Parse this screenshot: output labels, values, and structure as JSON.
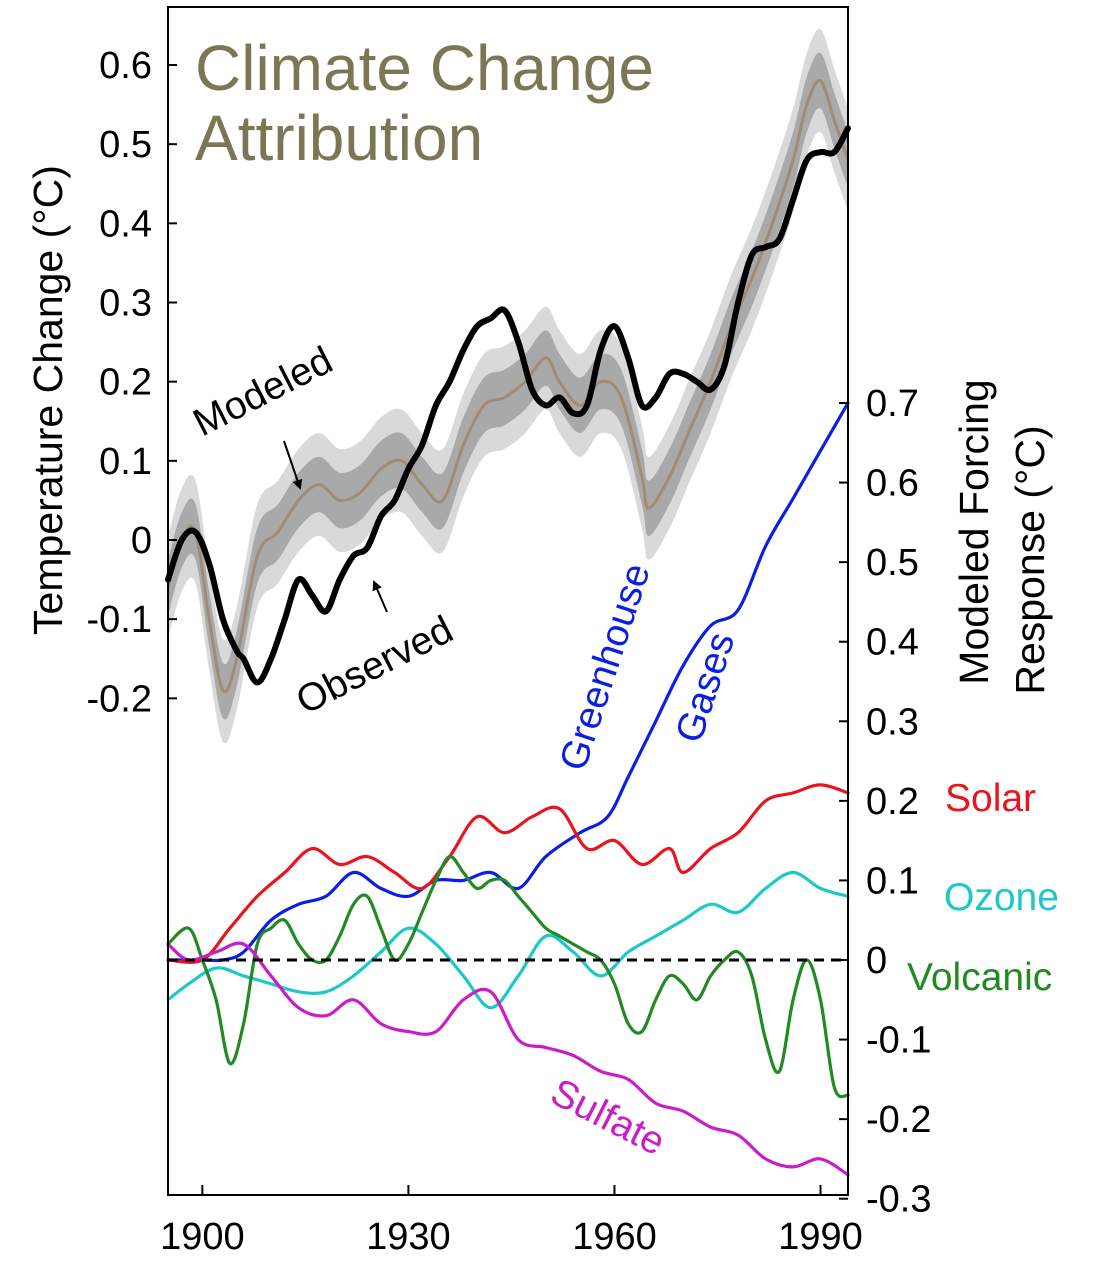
{
  "chart_data": {
    "type": "line",
    "title": "Climate Change Attribution",
    "title_color": "#7b7755",
    "x_ticks": [
      "1900",
      "1930",
      "1960",
      "1990"
    ],
    "xlim": [
      1895,
      1994
    ],
    "left_axis": {
      "label": "Temperature Change (°C)",
      "ylim": [
        -0.2,
        0.65
      ],
      "ticks": [
        "0.6",
        "0.5",
        "0.4",
        "0.3",
        "0.2",
        "0.1",
        "0",
        "-0.1",
        "-0.2"
      ]
    },
    "right_axis": {
      "label_line1": "Modeled Forcing",
      "label_line2": "Response (°C)",
      "ylim": [
        -0.3,
        0.7
      ],
      "ticks": [
        "0.7",
        "0.6",
        "0.5",
        "0.4",
        "0.3",
        "0.2",
        "0.1",
        "0",
        "-0.1",
        "-0.2",
        "-0.3"
      ]
    },
    "temperature": {
      "observed": {
        "name": "Observed",
        "color": "#000000",
        "x": [
          1895,
          1897,
          1899,
          1901,
          1903,
          1905,
          1906,
          1908,
          1910,
          1912,
          1914,
          1916,
          1918,
          1920,
          1922,
          1924,
          1926,
          1928,
          1930,
          1932,
          1934,
          1936,
          1938,
          1940,
          1942,
          1944,
          1946,
          1948,
          1950,
          1952,
          1954,
          1956,
          1958,
          1960,
          1962,
          1964,
          1966,
          1968,
          1970,
          1972,
          1974,
          1976,
          1978,
          1980,
          1982,
          1984,
          1986,
          1988,
          1990,
          1992,
          1994
        ],
        "y": [
          -0.05,
          0.0,
          0.01,
          -0.03,
          -0.1,
          -0.14,
          -0.15,
          -0.18,
          -0.15,
          -0.1,
          -0.05,
          -0.07,
          -0.09,
          -0.05,
          -0.02,
          -0.01,
          0.03,
          0.05,
          0.09,
          0.12,
          0.17,
          0.2,
          0.24,
          0.27,
          0.28,
          0.29,
          0.25,
          0.19,
          0.17,
          0.18,
          0.16,
          0.17,
          0.24,
          0.27,
          0.23,
          0.17,
          0.18,
          0.21,
          0.21,
          0.2,
          0.19,
          0.22,
          0.3,
          0.36,
          0.37,
          0.38,
          0.43,
          0.48,
          0.49,
          0.49,
          0.52
        ]
      },
      "modeled": {
        "name": "Modeled",
        "color": "#a08c74",
        "band_inner": 0.035,
        "band_outer": 0.065,
        "x": [
          1895,
          1897,
          1899,
          1901,
          1903,
          1905,
          1908,
          1911,
          1914,
          1917,
          1920,
          1923,
          1926,
          1929,
          1932,
          1935,
          1938,
          1941,
          1944,
          1947,
          1950,
          1952,
          1955,
          1958,
          1961,
          1964,
          1965,
          1968,
          1971,
          1974,
          1977,
          1980,
          1983,
          1986,
          1988,
          1990,
          1992,
          1994
        ],
        "y": [
          -0.06,
          0.0,
          0.01,
          -0.1,
          -0.19,
          -0.15,
          -0.02,
          0.01,
          0.05,
          0.07,
          0.05,
          0.06,
          0.09,
          0.1,
          0.07,
          0.05,
          0.12,
          0.17,
          0.18,
          0.2,
          0.23,
          0.2,
          0.17,
          0.2,
          0.18,
          0.08,
          0.04,
          0.08,
          0.14,
          0.2,
          0.27,
          0.33,
          0.4,
          0.48,
          0.55,
          0.58,
          0.53,
          0.48
        ]
      }
    },
    "forcings": [
      {
        "name": "Greenhouse Gases",
        "color": "#0a1ee6",
        "x": [
          1895,
          1900,
          1903,
          1906,
          1910,
          1914,
          1918,
          1922,
          1926,
          1930,
          1934,
          1938,
          1942,
          1946,
          1950,
          1955,
          1959,
          1962,
          1966,
          1970,
          1974,
          1978,
          1982,
          1986,
          1990,
          1994
        ],
        "y": [
          0.0,
          0.0,
          0.0,
          0.01,
          0.05,
          0.07,
          0.08,
          0.11,
          0.09,
          0.08,
          0.1,
          0.1,
          0.11,
          0.09,
          0.13,
          0.16,
          0.18,
          0.23,
          0.3,
          0.37,
          0.42,
          0.44,
          0.52,
          0.58,
          0.64,
          0.7
        ]
      },
      {
        "name": "Solar",
        "color": "#e8141e",
        "x": [
          1895,
          1900,
          1904,
          1908,
          1912,
          1916,
          1920,
          1924,
          1928,
          1932,
          1936,
          1940,
          1944,
          1948,
          1952,
          1956,
          1960,
          1964,
          1968,
          1970,
          1974,
          1978,
          1982,
          1986,
          1990,
          1994
        ],
        "y": [
          0.0,
          0.0,
          0.04,
          0.08,
          0.11,
          0.14,
          0.12,
          0.13,
          0.11,
          0.09,
          0.13,
          0.18,
          0.16,
          0.18,
          0.19,
          0.14,
          0.15,
          0.12,
          0.14,
          0.11,
          0.14,
          0.16,
          0.2,
          0.21,
          0.22,
          0.21
        ]
      },
      {
        "name": "Ozone",
        "color": "#1ec8c8",
        "x": [
          1895,
          1898,
          1902,
          1906,
          1910,
          1914,
          1918,
          1922,
          1926,
          1930,
          1934,
          1938,
          1942,
          1946,
          1950,
          1954,
          1958,
          1962,
          1966,
          1970,
          1974,
          1978,
          1982,
          1986,
          1990,
          1994
        ],
        "y": [
          -0.05,
          -0.03,
          -0.01,
          -0.02,
          -0.03,
          -0.04,
          -0.04,
          -0.02,
          0.01,
          0.04,
          0.02,
          -0.02,
          -0.06,
          -0.02,
          0.03,
          0.01,
          -0.02,
          0.01,
          0.03,
          0.05,
          0.07,
          0.06,
          0.09,
          0.11,
          0.09,
          0.08
        ]
      },
      {
        "name": "Volcanic",
        "color": "#228a22",
        "x": [
          1895,
          1898,
          1900,
          1902,
          1904,
          1906,
          1908,
          1910,
          1912,
          1914,
          1916,
          1918,
          1920,
          1922,
          1924,
          1926,
          1928,
          1930,
          1932,
          1934,
          1936,
          1938,
          1940,
          1942,
          1944,
          1946,
          1948,
          1950,
          1952,
          1954,
          1956,
          1958,
          1960,
          1962,
          1964,
          1966,
          1968,
          1970,
          1972,
          1974,
          1976,
          1978,
          1980,
          1982,
          1984,
          1986,
          1988,
          1990,
          1992,
          1994
        ],
        "y": [
          0.02,
          0.04,
          0.0,
          -0.05,
          -0.13,
          -0.08,
          0.02,
          0.04,
          0.05,
          0.02,
          0.0,
          0.0,
          0.03,
          0.07,
          0.08,
          0.04,
          0.0,
          0.02,
          0.06,
          0.1,
          0.13,
          0.11,
          0.09,
          0.1,
          0.1,
          0.08,
          0.06,
          0.04,
          0.03,
          0.02,
          0.01,
          0.0,
          -0.03,
          -0.08,
          -0.09,
          -0.05,
          -0.02,
          -0.03,
          -0.05,
          -0.02,
          0.0,
          0.01,
          -0.02,
          -0.1,
          -0.14,
          -0.05,
          0.0,
          -0.05,
          -0.16,
          -0.17
        ]
      },
      {
        "name": "Sulfate",
        "color": "#c81ec8",
        "x": [
          1895,
          1898,
          1902,
          1906,
          1910,
          1914,
          1918,
          1922,
          1926,
          1930,
          1934,
          1938,
          1942,
          1946,
          1950,
          1954,
          1958,
          1962,
          1966,
          1970,
          1974,
          1978,
          1982,
          1986,
          1990,
          1994
        ],
        "y": [
          0.02,
          0.0,
          0.01,
          0.02,
          -0.02,
          -0.06,
          -0.07,
          -0.05,
          -0.08,
          -0.09,
          -0.09,
          -0.05,
          -0.04,
          -0.1,
          -0.11,
          -0.12,
          -0.14,
          -0.15,
          -0.18,
          -0.19,
          -0.21,
          -0.22,
          -0.25,
          -0.26,
          -0.25,
          -0.27
        ]
      }
    ],
    "zero_line": {
      "style": "dashed",
      "color": "#000000"
    },
    "labels": {
      "modeled": "Modeled",
      "observed": "Observed",
      "greenhouse_line1": "Greenhouse",
      "greenhouse_line2": "Gases",
      "solar": "Solar",
      "ozone": "Ozone",
      "volcanic": "Volcanic",
      "sulfate": "Sulfate"
    },
    "grid": false
  }
}
